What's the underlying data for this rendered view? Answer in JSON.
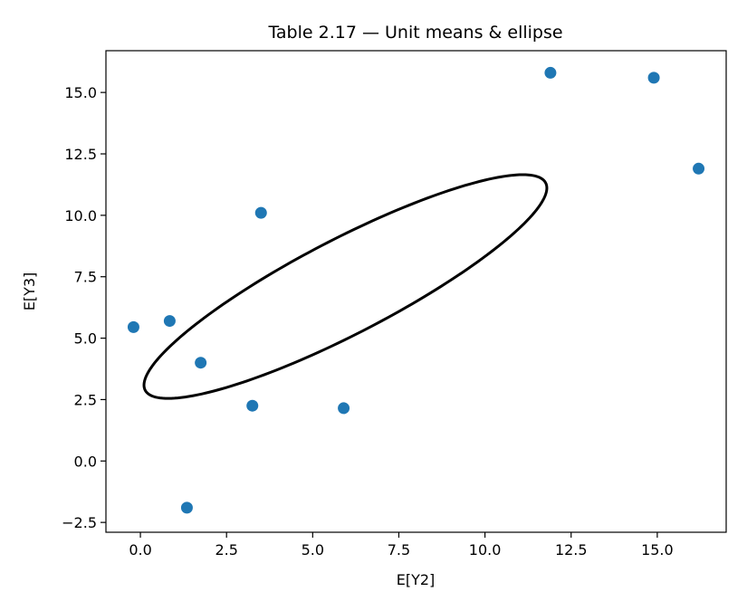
{
  "chart_data": {
    "type": "scatter",
    "title": "Table 2.17 — Unit means & ellipse",
    "xlabel": "E[Y2]",
    "ylabel": "E[Y3]",
    "xlim": [
      -1.0,
      17.0
    ],
    "ylim": [
      -2.9,
      16.7
    ],
    "xticks": [
      0.0,
      2.5,
      5.0,
      7.5,
      10.0,
      12.5,
      15.0
    ],
    "xtick_labels": [
      "0.0",
      "2.5",
      "5.0",
      "7.5",
      "10.0",
      "12.5",
      "15.0"
    ],
    "yticks": [
      -2.5,
      0.0,
      2.5,
      5.0,
      7.5,
      10.0,
      12.5,
      15.0
    ],
    "ytick_labels": [
      "−2.5",
      "0.0",
      "2.5",
      "5.0",
      "7.5",
      "10.0",
      "12.5",
      "15.0"
    ],
    "grid": false,
    "point_color": "#1f77b4",
    "ellipse_color": "#000000",
    "points": [
      {
        "x": -0.2,
        "y": 5.45
      },
      {
        "x": 0.85,
        "y": 5.7
      },
      {
        "x": 1.75,
        "y": 4.0
      },
      {
        "x": 1.35,
        "y": -1.9
      },
      {
        "x": 3.25,
        "y": 2.25
      },
      {
        "x": 3.5,
        "y": 10.1
      },
      {
        "x": 5.9,
        "y": 2.15
      },
      {
        "x": 11.9,
        "y": 15.8
      },
      {
        "x": 14.9,
        "y": 15.6
      },
      {
        "x": 16.2,
        "y": 11.9
      }
    ],
    "ellipse": {
      "center": [
        5.95,
        7.1
      ],
      "semi_major": 7.2,
      "semi_minor": 1.75,
      "angle_deg": 37
    }
  }
}
